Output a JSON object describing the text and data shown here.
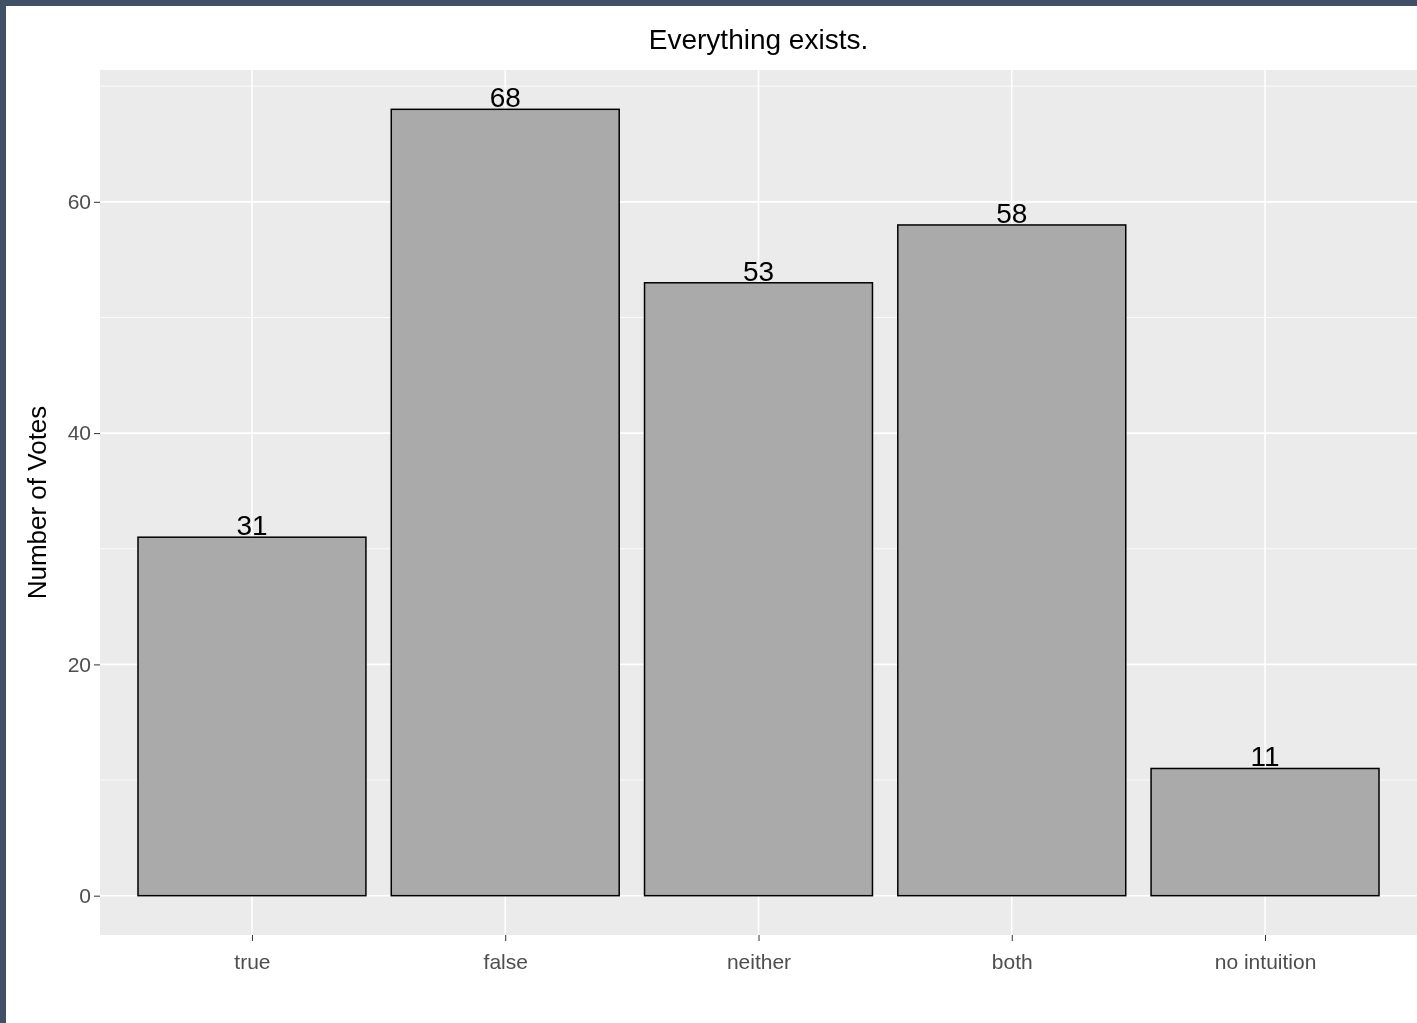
{
  "chart_data": {
    "type": "bar",
    "title": "Everything exists.",
    "ylabel": "Number of Votes",
    "categories": [
      "true",
      "false",
      "neither",
      "both",
      "no intuition"
    ],
    "values": [
      31,
      68,
      53,
      58,
      11
    ],
    "color": "#aaaaaa",
    "ylim": [
      -3.4,
      71.4
    ],
    "yticks": [
      0,
      20,
      40,
      60
    ],
    "grid": true,
    "data_labels": true
  }
}
